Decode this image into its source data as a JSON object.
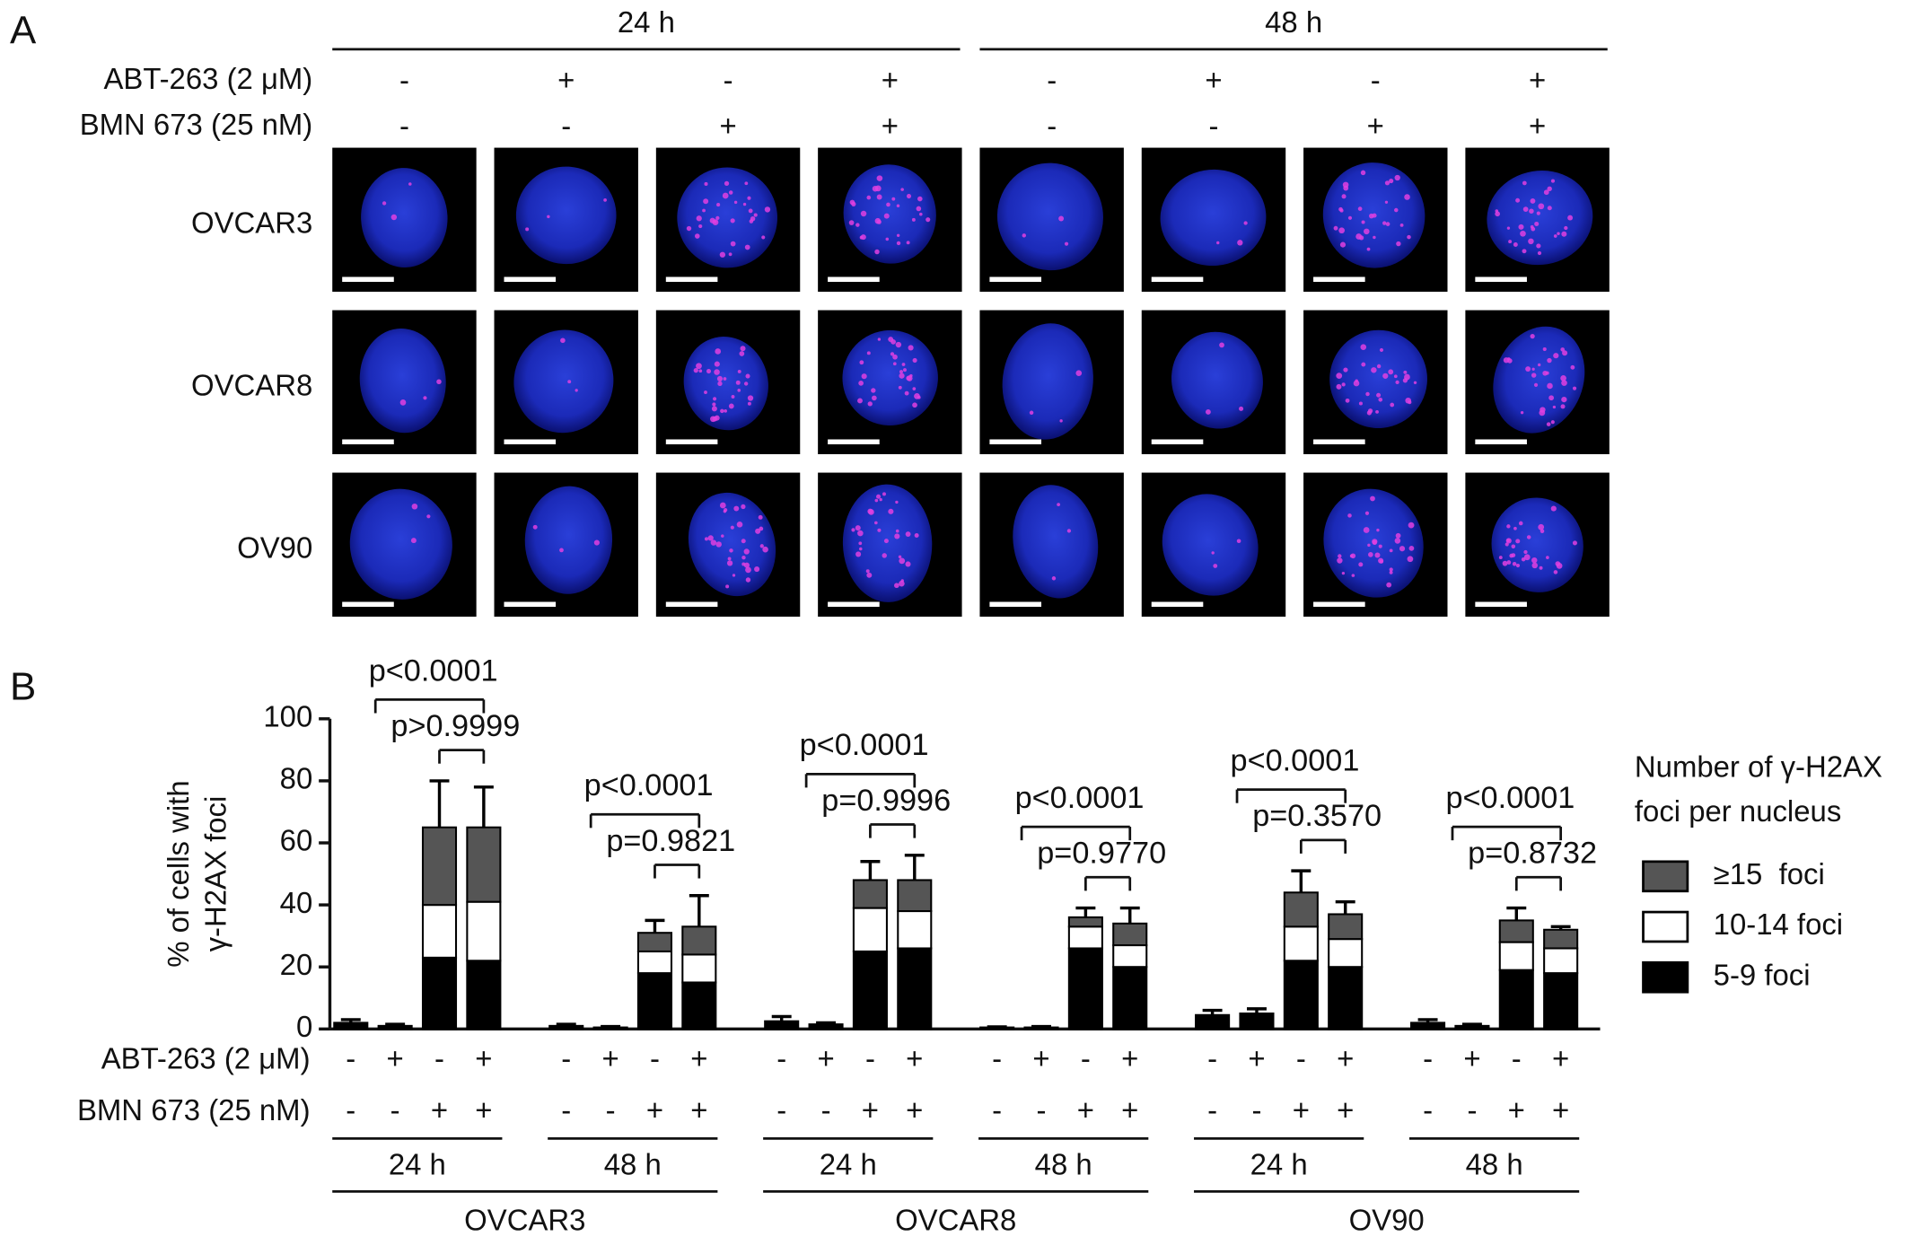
{
  "panel_a": {
    "label": "A",
    "time_headers": [
      "24 h",
      "48 h"
    ],
    "row_labels": [
      "ABT-263 (2 μM)",
      "BMN 673 (25 nM)"
    ],
    "abt_signs": [
      "-",
      "+",
      "-",
      "+",
      "-",
      "+",
      "-",
      "+"
    ],
    "bmn_signs": [
      "-",
      "-",
      "+",
      "+",
      "-",
      "-",
      "+",
      "+"
    ],
    "cell_lines": [
      "OVCAR3",
      "OVCAR8",
      "OV90"
    ]
  },
  "chart_data": {
    "type": "stacked_bar",
    "panel_label": "B",
    "ylabel": [
      "% of cells with",
      "γ-H2AX foci"
    ],
    "ylim": [
      0,
      100
    ],
    "yticks": [
      0,
      20,
      40,
      60,
      80,
      100
    ],
    "row_labels": [
      "ABT-263 (2 μM)",
      "BMN 673 (25 nM)"
    ],
    "abt_signs": [
      "-",
      "+",
      "-",
      "+",
      "-",
      "+",
      "-",
      "+",
      "-",
      "+",
      "-",
      "+",
      "-",
      "+",
      "-",
      "+",
      "-",
      "+",
      "-",
      "+",
      "-",
      "+",
      "-",
      "+"
    ],
    "bmn_signs": [
      "-",
      "-",
      "+",
      "+",
      "-",
      "-",
      "+",
      "+",
      "-",
      "-",
      "+",
      "+",
      "-",
      "-",
      "+",
      "+",
      "-",
      "-",
      "+",
      "+",
      "-",
      "-",
      "+",
      "+"
    ],
    "time_groups": [
      "24 h",
      "48 h",
      "24 h",
      "48 h",
      "24 h",
      "48 h"
    ],
    "cell_lines": [
      "OVCAR3",
      "OVCAR8",
      "OV90"
    ],
    "legend_title": [
      "Number of γ-H2AX",
      "foci per nucleus"
    ],
    "series": [
      {
        "name": "5-9 foci",
        "color": "#000000",
        "values": [
          2,
          1,
          23,
          22,
          1,
          0.5,
          18,
          15,
          2.5,
          1.5,
          25,
          26,
          0.5,
          0.5,
          26,
          20,
          4.5,
          5,
          22,
          20,
          2,
          1,
          19,
          18
        ],
        "errors": [
          1,
          0.5,
          8,
          3,
          0.5,
          0.3,
          4,
          5,
          1.5,
          0.5,
          3,
          4,
          0.2,
          0.3,
          2,
          2,
          1.5,
          1.5,
          2,
          3,
          1,
          0.5,
          3,
          3
        ]
      },
      {
        "name": "10-14 foci",
        "color": "#ffffff",
        "values": [
          0,
          0,
          17,
          19,
          0,
          0,
          7,
          9,
          0,
          0,
          14,
          12,
          0,
          0,
          7,
          7,
          0,
          0,
          11,
          9,
          0,
          0,
          9,
          8
        ],
        "errors": [
          0,
          0,
          2,
          5,
          0,
          0,
          3,
          2,
          0,
          0,
          1,
          3,
          0,
          0,
          2,
          3,
          0,
          0,
          1,
          2,
          0,
          0,
          2,
          1
        ]
      },
      {
        "name": "≥15  foci",
        "color": "#555555",
        "values": [
          0,
          0,
          25,
          24,
          0,
          0,
          6,
          9,
          0,
          0,
          9,
          10,
          0,
          0,
          3,
          7,
          0,
          0,
          11,
          8,
          0,
          0,
          7,
          6
        ],
        "errors": [
          0,
          0,
          15,
          13,
          0,
          0,
          4,
          10,
          0,
          0,
          6,
          8,
          0,
          0,
          3,
          5,
          0,
          0,
          7,
          4,
          0,
          0,
          4,
          1
        ]
      }
    ],
    "comparisons": [
      {
        "wide": "p<0.0001",
        "narrow": "p>0.9999"
      },
      {
        "wide": "p<0.0001",
        "narrow": "p=0.9821"
      },
      {
        "wide": "p<0.0001",
        "narrow": "p=0.9996"
      },
      {
        "wide": "p<0.0001",
        "narrow": "p=0.9770"
      },
      {
        "wide": "p<0.0001",
        "narrow": "p=0.3570"
      },
      {
        "wide": "p<0.0001",
        "narrow": "p=0.8732"
      }
    ]
  }
}
